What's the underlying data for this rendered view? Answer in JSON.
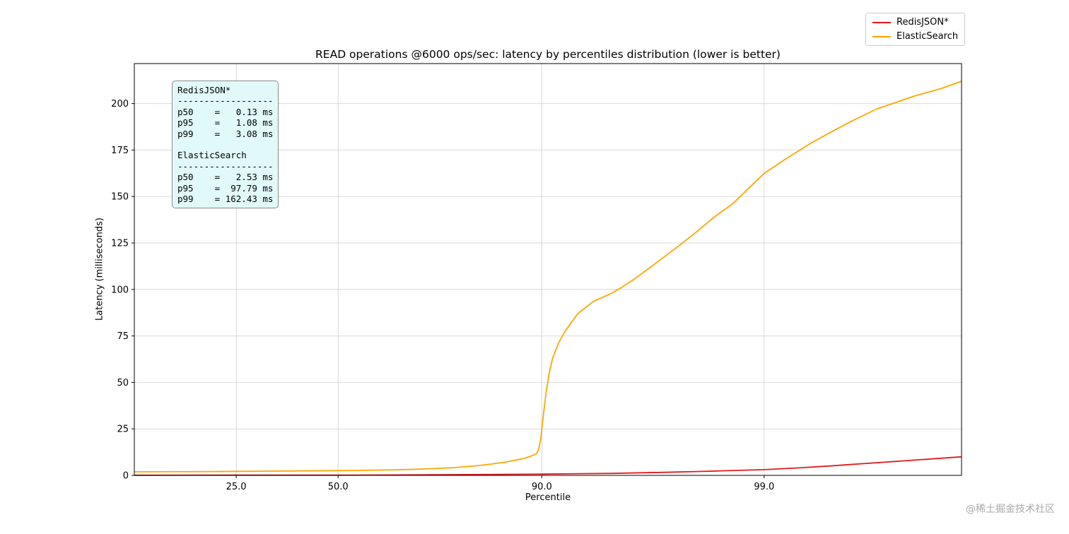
{
  "title": "READ operations @6000 ops/sec: latency by percentiles distribution (lower is better)",
  "legend": {
    "position": "upper right outside",
    "items": [
      {
        "label": "RedisJSON*",
        "color": "#e31a1c"
      },
      {
        "label": "ElasticSearch",
        "color": "#ffa500"
      }
    ]
  },
  "stats_box": {
    "lines": [
      "RedisJSON*",
      "------------------",
      "p50    =   0.13 ms",
      "p95    =   1.08 ms",
      "p99    =   3.08 ms",
      "",
      "ElasticSearch",
      "------------------",
      "p50    =   2.53 ms",
      "p95    =  97.79 ms",
      "p99    = 162.43 ms"
    ]
  },
  "watermark": "@稀土掘金技术社区",
  "chart_data": {
    "type": "line",
    "title": "READ operations @6000 ops/sec: latency by percentiles distribution (lower is better)",
    "xlabel": "Percentile",
    "ylabel": "Latency (milliseconds)",
    "x_scale": "logit-percentile",
    "grid": true,
    "xdomain": [
      10,
      99.88
    ],
    "ylim": [
      0,
      221.5
    ],
    "xticks": [
      {
        "value": 25,
        "label": "25.0"
      },
      {
        "value": 50,
        "label": "50.0"
      },
      {
        "value": 90,
        "label": "90.0"
      },
      {
        "value": 99,
        "label": "99.0"
      }
    ],
    "yticks": [
      {
        "value": 0,
        "label": "0"
      },
      {
        "value": 25,
        "label": "25"
      },
      {
        "value": 50,
        "label": "50"
      },
      {
        "value": 75,
        "label": "75"
      },
      {
        "value": 100,
        "label": "100"
      },
      {
        "value": 125,
        "label": "125"
      },
      {
        "value": 150,
        "label": "150"
      },
      {
        "value": 175,
        "label": "175"
      },
      {
        "value": 200,
        "label": "200"
      }
    ],
    "series": [
      {
        "name": "RedisJSON*",
        "color": "#e31a1c",
        "stats": {
          "p50": 0.13,
          "p95": 1.08,
          "p99": 3.08
        },
        "points": [
          [
            10,
            0.08
          ],
          [
            25,
            0.1
          ],
          [
            50,
            0.13
          ],
          [
            70,
            0.25
          ],
          [
            80,
            0.4
          ],
          [
            85,
            0.55
          ],
          [
            90,
            0.7
          ],
          [
            93,
            0.9
          ],
          [
            95,
            1.08
          ],
          [
            97,
            1.6
          ],
          [
            98,
            2.1
          ],
          [
            99,
            3.08
          ],
          [
            99.3,
            4.0
          ],
          [
            99.5,
            5.0
          ],
          [
            99.6,
            5.8
          ],
          [
            99.7,
            6.8
          ],
          [
            99.8,
            8.2
          ],
          [
            99.85,
            9.2
          ],
          [
            99.88,
            10.0
          ]
        ]
      },
      {
        "name": "ElasticSearch",
        "color": "#ffa500",
        "stats": {
          "p50": 2.53,
          "p95": 97.79,
          "p99": 162.43
        },
        "points": [
          [
            10,
            1.9
          ],
          [
            20,
            2.05
          ],
          [
            25,
            2.15
          ],
          [
            30,
            2.25
          ],
          [
            40,
            2.4
          ],
          [
            50,
            2.53
          ],
          [
            55,
            2.65
          ],
          [
            60,
            2.8
          ],
          [
            65,
            3.0
          ],
          [
            70,
            3.3
          ],
          [
            75,
            3.8
          ],
          [
            78,
            4.2
          ],
          [
            80,
            4.7
          ],
          [
            82,
            5.3
          ],
          [
            84,
            6.1
          ],
          [
            86,
            7.2
          ],
          [
            87,
            8.0
          ],
          [
            88,
            9.0
          ],
          [
            88.7,
            10.0
          ],
          [
            89.2,
            11.0
          ],
          [
            89.5,
            11.8
          ],
          [
            89.7,
            14.0
          ],
          [
            89.9,
            20.0
          ],
          [
            90.1,
            30.0
          ],
          [
            90.4,
            44.0
          ],
          [
            90.7,
            55.0
          ],
          [
            91,
            63.0
          ],
          [
            91.5,
            71.0
          ],
          [
            92,
            77.0
          ],
          [
            92.5,
            82.0
          ],
          [
            93,
            87.0
          ],
          [
            94,
            93.5
          ],
          [
            95,
            97.79
          ],
          [
            95.5,
            101.0
          ],
          [
            96,
            105.0
          ],
          [
            96.5,
            110.0
          ],
          [
            97,
            116.0
          ],
          [
            97.5,
            123.0
          ],
          [
            98,
            132.0
          ],
          [
            98.3,
            139.0
          ],
          [
            98.6,
            146.0
          ],
          [
            99,
            162.43
          ],
          [
            99.2,
            170.0
          ],
          [
            99.4,
            179.0
          ],
          [
            99.5,
            184.0
          ],
          [
            99.6,
            190.0
          ],
          [
            99.7,
            197.0
          ],
          [
            99.8,
            204.0
          ],
          [
            99.85,
            208.0
          ],
          [
            99.88,
            212.0
          ]
        ]
      }
    ]
  }
}
